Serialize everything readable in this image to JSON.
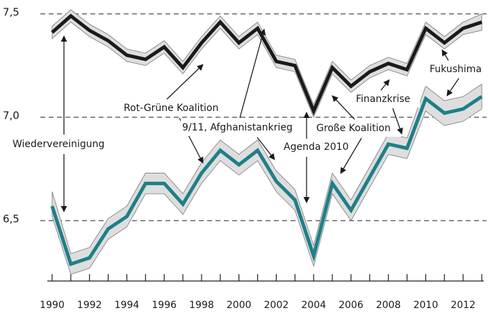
{
  "chart_data": {
    "type": "line",
    "x": [
      1990,
      1991,
      1992,
      1993,
      1994,
      1995,
      1996,
      1997,
      1998,
      1999,
      2000,
      2001,
      2002,
      2003,
      2004,
      2005,
      2006,
      2007,
      2008,
      2009,
      2010,
      2011,
      2012,
      2013
    ],
    "xlim": [
      1989.74,
      2013.11
    ],
    "xticks": [
      1990,
      1992,
      1994,
      1996,
      1998,
      2000,
      2002,
      2004,
      2006,
      2008,
      2010,
      2012
    ],
    "ylim": [
      6.208,
      7.567
    ],
    "yticks": [
      {
        "value": 6.5,
        "label": "6,5"
      },
      {
        "value": 7.0,
        "label": "7,0"
      },
      {
        "value": 7.5,
        "label": "7,5"
      }
    ],
    "grid": true,
    "band_color": "#dedede",
    "series": [
      {
        "color": "#1a1a1a",
        "values": [
          7.41,
          7.49,
          7.42,
          7.37,
          7.3,
          7.28,
          7.34,
          7.24,
          7.36,
          7.46,
          7.36,
          7.43,
          7.27,
          7.25,
          7.03,
          7.24,
          7.15,
          7.22,
          7.26,
          7.23,
          7.43,
          7.36,
          7.43,
          7.46
        ],
        "lower": [
          7.38,
          7.46,
          7.39,
          7.34,
          7.27,
          7.25,
          7.31,
          7.21,
          7.33,
          7.43,
          7.33,
          7.4,
          7.24,
          7.22,
          7.0,
          7.21,
          7.12,
          7.19,
          7.23,
          7.2,
          7.4,
          7.33,
          7.4,
          7.42
        ],
        "upper": [
          7.44,
          7.52,
          7.45,
          7.4,
          7.33,
          7.31,
          7.37,
          7.27,
          7.39,
          7.49,
          7.39,
          7.46,
          7.3,
          7.28,
          7.06,
          7.27,
          7.18,
          7.25,
          7.29,
          7.26,
          7.46,
          7.39,
          7.46,
          7.5
        ]
      },
      {
        "color": "#1f7f87",
        "values": [
          6.57,
          6.29,
          6.32,
          6.46,
          6.52,
          6.68,
          6.68,
          6.58,
          6.73,
          6.84,
          6.77,
          6.84,
          6.69,
          6.6,
          6.33,
          6.68,
          6.55,
          6.71,
          6.87,
          6.85,
          7.09,
          7.02,
          7.04,
          7.1
        ],
        "lower": [
          6.52,
          6.24,
          6.27,
          6.41,
          6.47,
          6.63,
          6.63,
          6.53,
          6.68,
          6.79,
          6.72,
          6.79,
          6.64,
          6.55,
          6.28,
          6.63,
          6.5,
          6.66,
          6.82,
          6.8,
          7.03,
          6.96,
          6.98,
          7.04
        ],
        "upper": [
          6.64,
          6.34,
          6.37,
          6.51,
          6.57,
          6.73,
          6.73,
          6.63,
          6.78,
          6.89,
          6.82,
          6.89,
          6.74,
          6.65,
          6.38,
          6.73,
          6.6,
          6.76,
          6.92,
          6.9,
          7.15,
          7.08,
          7.1,
          7.16
        ]
      }
    ],
    "annotations": [
      "Wiedervereinigung",
      "Rot-Grüne Koalition",
      "9/11, Afghanistankrieg",
      "Agenda 2010",
      "Große Koalition",
      "Finanzkrise",
      "Fukushima"
    ]
  }
}
